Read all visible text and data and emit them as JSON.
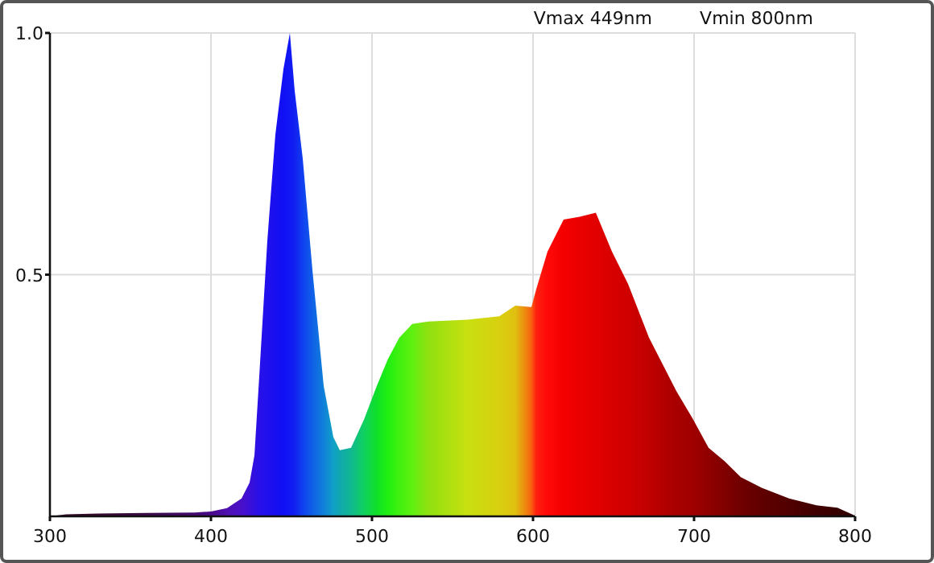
{
  "chart_data": {
    "type": "area",
    "x": [
      300,
      310,
      330,
      360,
      390,
      400,
      410,
      419,
      424,
      427,
      430,
      435,
      440,
      445,
      449,
      452,
      457,
      463,
      470,
      476,
      480,
      487,
      495,
      503,
      510,
      517,
      525,
      535,
      559,
      579,
      589,
      596,
      599,
      602,
      609,
      619,
      629,
      639,
      649,
      659,
      672,
      689,
      699,
      709,
      719,
      729,
      742,
      759,
      776,
      789,
      799,
      800
    ],
    "series": [
      {
        "values": [
          0,
          0.004,
          0.006,
          0.007,
          0.008,
          0.01,
          0.017,
          0.037,
          0.07,
          0.126,
          0.29,
          0.57,
          0.79,
          0.925,
          1,
          0.88,
          0.74,
          0.51,
          0.27,
          0.164,
          0.137,
          0.142,
          0.2,
          0.27,
          0.326,
          0.37,
          0.398,
          0.403,
          0.407,
          0.414,
          0.436,
          0.434,
          0.433,
          0.47,
          0.548,
          0.614,
          0.62,
          0.628,
          0.548,
          0.481,
          0.37,
          0.259,
          0.203,
          0.142,
          0.114,
          0.081,
          0.059,
          0.037,
          0.023,
          0.018,
          0.003,
          0
        ],
        "colors": [
          "#300820",
          "#340828",
          "#380a30",
          "#3c0a48",
          "#440a70",
          "#4a0a8a",
          "#5010b0",
          "#4810c8",
          "#3c10d8",
          "#3010e0",
          "#2810e8",
          "#2010ee",
          "#1810f0",
          "#1010f4",
          "#1018f4",
          "#1020f0",
          "#1040f0",
          "#1060e8",
          "#1080d8",
          "#10a0c8",
          "#10a8b0",
          "#10b890",
          "#10d060",
          "#10e028",
          "#20f010",
          "#40f010",
          "#60f010",
          "#90e010",
          "#c8e010",
          "#d8d010",
          "#e0c010",
          "#f08010",
          "#f86010",
          "#ff2010",
          "#ff0808",
          "#f40000",
          "#ea0000",
          "#e20000",
          "#d80000",
          "#d00000",
          "#c00000",
          "#a80000",
          "#a00000",
          "#900000",
          "#800000",
          "#700000",
          "#600000",
          "#500000",
          "#400000",
          "#380000",
          "#300000",
          "#300000"
        ]
      }
    ],
    "xlim": [
      300,
      800
    ],
    "xticks": [
      300,
      400,
      500,
      600,
      700,
      800
    ],
    "ylim": [
      0,
      1
    ],
    "yticks": [
      0.5,
      {
        "value": 1,
        "label": "1.0"
      }
    ],
    "grid": true,
    "annotations": [
      "Vmax 449nm",
      "Vmin 800nm"
    ]
  }
}
